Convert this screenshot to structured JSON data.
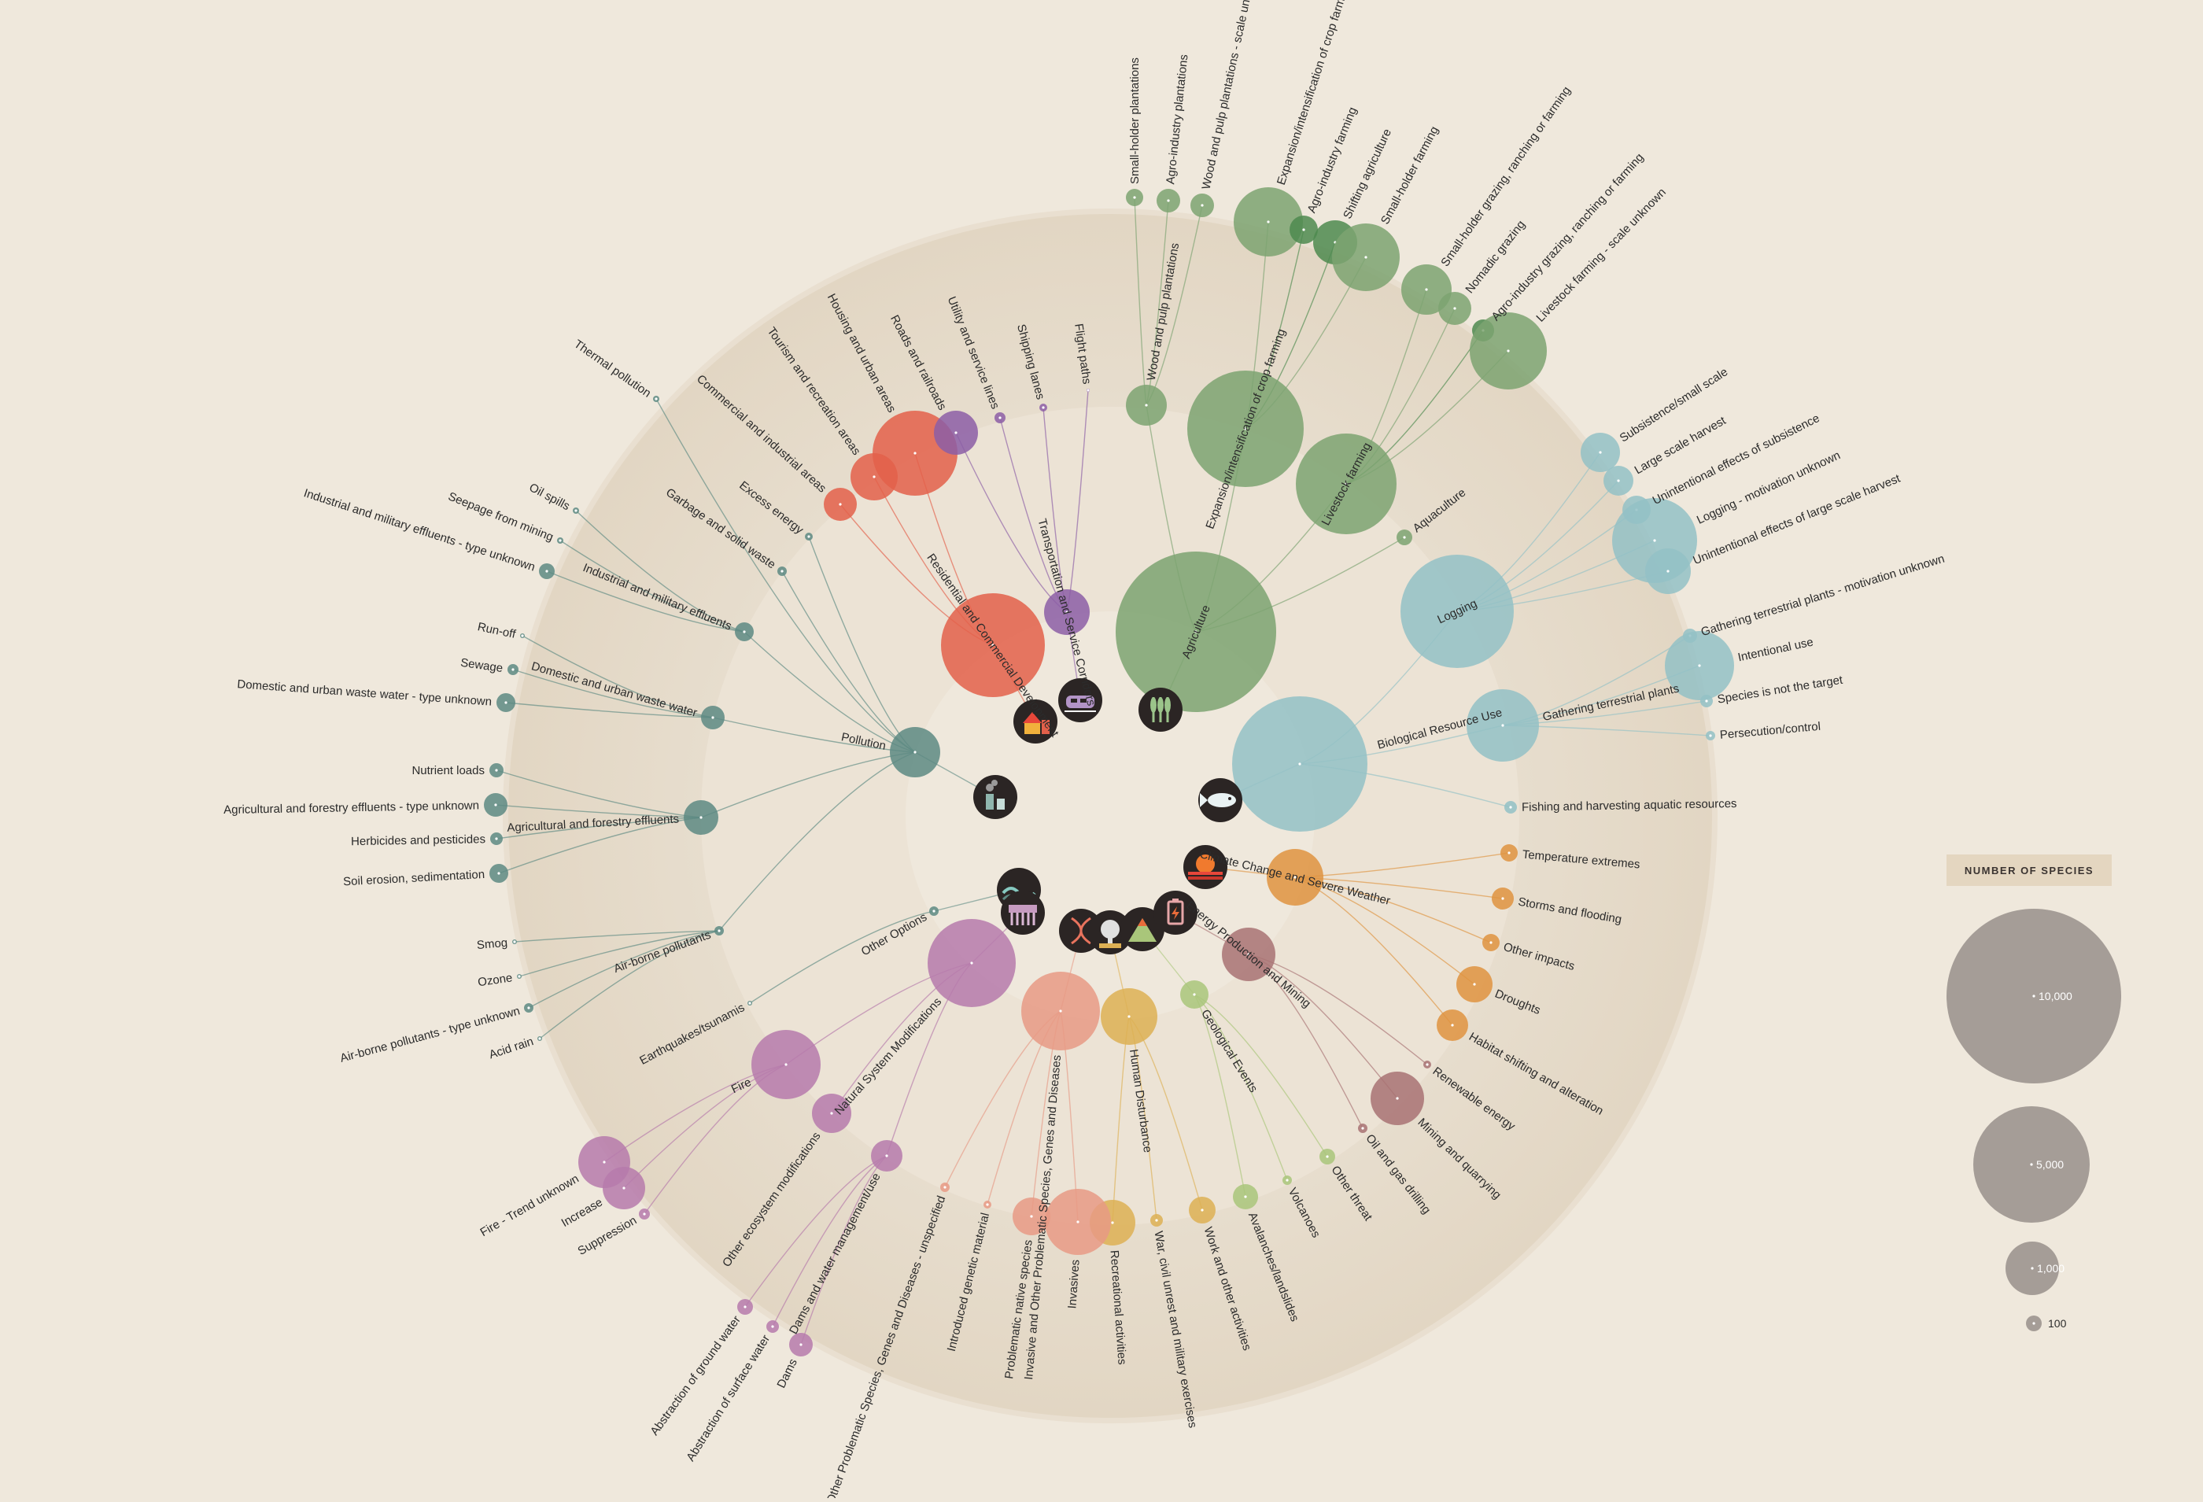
{
  "legend": {
    "title": "NUMBER OF SPECIES",
    "items": [
      {
        "label": "10,000",
        "value": 10000
      },
      {
        "label": "5,000",
        "value": 5000
      },
      {
        "label": "1,000",
        "value": 1000
      },
      {
        "label": "100",
        "value": 100
      }
    ]
  },
  "colors": {
    "agriculture": "#7da371",
    "agriculture_dark": "#4d8a4f",
    "biological": "#93c1c6",
    "pollution": "#5d8a83",
    "residential": "#e3604a",
    "transport": "#8c5ea6",
    "natural": "#b67aab",
    "invasive": "#e79a85",
    "human": "#ddb054",
    "geological": "#a9c67a",
    "energy": "#a87273",
    "climate": "#df933f",
    "icon_bg": "#2b2524"
  },
  "categories": [
    {
      "key": "agriculture",
      "label": "Agriculture",
      "icon": "wheat-icon"
    },
    {
      "key": "biological",
      "label": "Biological Resource Use",
      "icon": "fish-icon"
    },
    {
      "key": "pollution",
      "label": "Pollution",
      "icon": "factory-icon"
    },
    {
      "key": "residential",
      "label": "Residential and Commercial Development",
      "icon": "house-icon"
    },
    {
      "key": "transport",
      "label": "Transportation and Service Corridors",
      "icon": "train-icon"
    },
    {
      "key": "other",
      "label": "Other Options",
      "icon": "wave-icon"
    },
    {
      "key": "natural",
      "label": "Natural System Modifications",
      "icon": "waterfall-icon"
    },
    {
      "key": "invasive",
      "label": "Invasive and Other Problematic Species, Genes and Diseases",
      "icon": "dna-icon"
    },
    {
      "key": "human",
      "label": "Human Disturbance",
      "icon": "explosion-icon"
    },
    {
      "key": "geological",
      "label": "Geological Events",
      "icon": "volcano-icon"
    },
    {
      "key": "energy",
      "label": "Energy Production and Mining",
      "icon": "battery-icon"
    },
    {
      "key": "climate",
      "label": "Climate Change and Severe Weather",
      "icon": "sun-icon"
    }
  ],
  "labels": {
    "small_holder_plantations": "Small-holder plantations",
    "agro_industry_plantations": "Agro-industry plantations",
    "wood_pulp_scale_unknown": "Wood and pulp plantations - scale unknown",
    "wood_and_pulp_plantations": "Wood and pulp plantations",
    "expansion_scale_unknown": "Expansion/intensification of crop farming - scale unknown",
    "agro_industry_farming": "Agro-industry farming",
    "shifting_agriculture": "Shifting agriculture",
    "small_holder_farming": "Small-holder farming",
    "expansion_crop_farming": "Expansion/intensification of crop farming",
    "small_holder_grazing": "Small-holder grazing, ranching or farming",
    "nomadic_grazing": "Nomadic grazing",
    "agro_industry_grazing": "Agro-industry grazing, ranching or farming",
    "livestock_scale_unknown": "Livestock farming - scale unknown",
    "livestock_farming": "Livestock farming",
    "aquaculture": "Aquaculture",
    "agriculture": "Agriculture",
    "subsistence_small": "Subsistence/small scale",
    "large_scale_harvest": "Large scale harvest",
    "unintentional_subsistence": "Unintentional effects of subsistence",
    "logging_motivation_unknown": "Logging - motivation unknown",
    "unintentional_large_scale": "Unintentional effects of large scale harvest",
    "logging": "Logging",
    "gathering_plants_motivation": "Gathering terrestrial plants - motivation unknown",
    "intentional_use": "Intentional use",
    "species_not_target": "Species is not the target",
    "persecution_control": "Persecution/control",
    "gathering_terrestrial_plants": "Gathering terrestrial plants",
    "biological_resource_use": "Biological Resource Use",
    "fishing_aquatic": "Fishing and harvesting aquatic resources",
    "temperature_extremes": "Temperature extremes",
    "storms_flooding": "Storms and flooding",
    "other_impacts": "Other impacts",
    "droughts": "Droughts",
    "habitat_shifting": "Habitat shifting and alteration",
    "climate_change": "Climate Change and Severe Weather",
    "renewable_energy": "Renewable energy",
    "mining_quarrying": "Mining and quarrying",
    "oil_gas_drilling": "Oil and gas drilling",
    "energy_production": "Energy Production and Mining",
    "other_threat": "Other threat",
    "volcanoes": "Volcanoes",
    "avalanches": "Avalanches/landslides",
    "geological_events": "Geological Events",
    "work_other": "Work and other activities",
    "war_civil": "War, civil unrest and military exercises",
    "recreational": "Recreational activities",
    "human_disturbance": "Human Disturbance",
    "invasives": "Invasives",
    "problematic_native": "Problematic native species",
    "introduced_genetic": "Introduced genetic material",
    "invasive_unspecified": "Invasive and Other Problematic Species, Genes and Diseases - unspecified",
    "invasive_category": "Invasive and Other Problematic Species, Genes and Diseases",
    "dams": "Dams",
    "abstraction_surface": "Abstraction of surface water",
    "abstraction_ground": "Abstraction of ground water",
    "dams_water_mgmt": "Dams and water management/use",
    "other_ecosystem": "Other ecosystem modifications",
    "suppression": "Suppression",
    "increase": "Increase",
    "fire_trend": "Fire - Trend unknown",
    "fire": "Fire",
    "natural_system": "Natural System Modifications",
    "earthquakes": "Earthquakes/tsunamis",
    "other_options": "Other Options",
    "acid_rain": "Acid rain",
    "airborne_type_unknown": "Air-borne pollutants - type unknown",
    "ozone": "Ozone",
    "smog": "Smog",
    "airborne_pollutants": "Air-borne pollutants",
    "soil_erosion": "Soil erosion, sedimentation",
    "herbicides": "Herbicides and pesticides",
    "agri_forestry_type_unknown": "Agricultural and forestry effluents - type unknown",
    "nutrient_loads": "Nutrient loads",
    "agri_forestry_effluents": "Agricultural and forestry effluents",
    "domestic_type_unknown": "Domestic and urban waste water - type unknown",
    "sewage": "Sewage",
    "run_off": "Run-off",
    "domestic_urban": "Domestic and urban waste water",
    "industrial_type_unknown": "Industrial and military effluents - type unknown",
    "seepage_mining": "Seepage from mining",
    "oil_spills": "Oil spills",
    "industrial_military": "Industrial and military effluents",
    "garbage_solid": "Garbage and solid waste",
    "excess_energy": "Excess energy",
    "thermal_pollution": "Thermal pollution",
    "pollution": "Pollution",
    "commercial_industrial": "Commercial and industrial areas",
    "tourism_recreation": "Tourism and recreation areas",
    "housing_urban": "Housing and urban areas",
    "residential_commercial": "Residential and Commercial Development",
    "roads_railroads": "Roads and railroads",
    "utility_service": "Utility and service lines",
    "shipping_lanes": "Shipping lanes",
    "flight_paths": "Flight paths",
    "transportation": "Transportation and Service Corridors"
  }
}
